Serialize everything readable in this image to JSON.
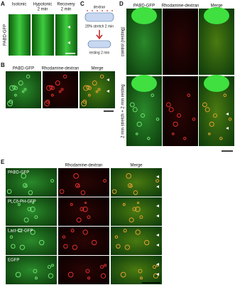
{
  "panel_a": {
    "label": "A",
    "columns": [
      [
        "Isotonic"
      ],
      [
        "Hypotonic",
        "2 min"
      ],
      [
        "Recovery",
        "2 min"
      ]
    ],
    "row_label": "PABD-GFP"
  },
  "panel_b": {
    "label": "B",
    "columns": [
      "PABD-GFP",
      "Rhodamine-dextran",
      "Merge"
    ]
  },
  "panel_c": {
    "label": "C",
    "dextran": "dextran",
    "stretch": "20% stretch 2 min",
    "resting": "resting 2 min"
  },
  "panel_d": {
    "label": "D",
    "columns": [
      "PABD-GFP",
      "Rhodamine-dextran",
      "Merge"
    ],
    "rows": [
      "control (resting)",
      "2 min stretch + 2 min resting"
    ]
  },
  "panel_e": {
    "label": "E",
    "columns": [
      "Rhodamine-dextran",
      "Merge"
    ],
    "rows": [
      "PABD-GFP",
      "PLCδ-PH-GFP",
      "Lact-C2-GFP",
      "EGFP"
    ]
  }
}
